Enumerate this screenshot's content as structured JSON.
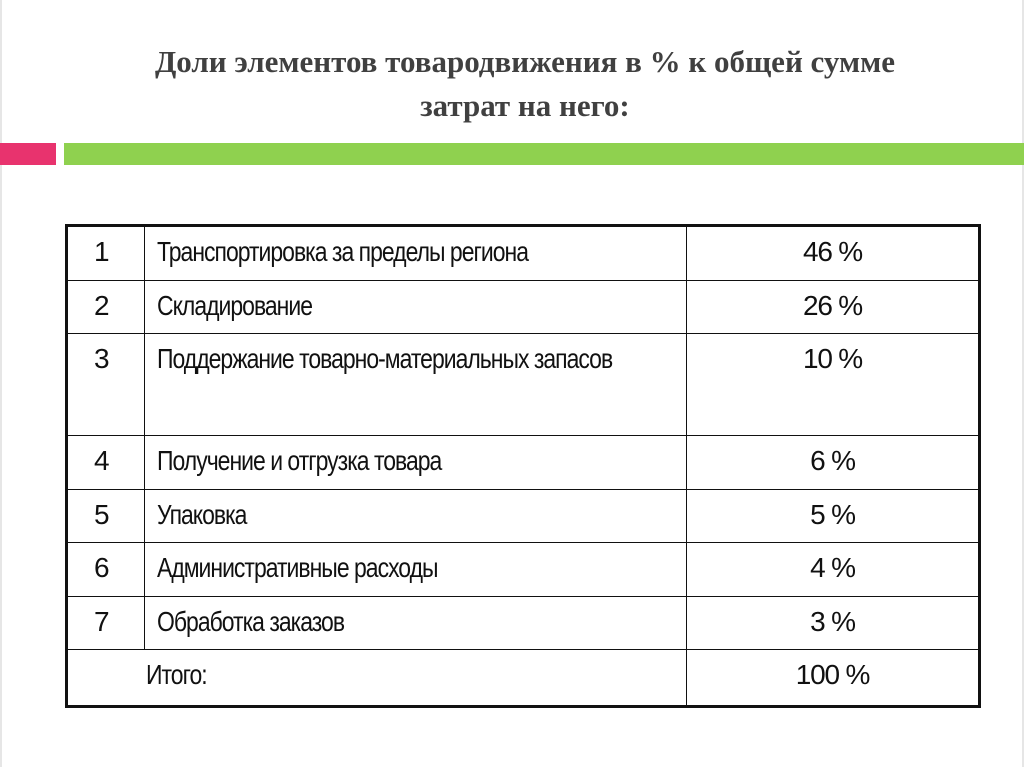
{
  "slide": {
    "title_line1": "Доли элементов товародвижения в % к общей сумме",
    "title_line2": "затрат на него:",
    "accent_pink": "#e8336e",
    "accent_green": "#8fd14f"
  },
  "table": {
    "rows": [
      {
        "num": "1",
        "name": "Транспортировка за пределы региона",
        "pct": "46 %"
      },
      {
        "num": "2",
        "name": "Складирование",
        "pct": "26 %"
      },
      {
        "num": "3",
        "name": "Поддержание товарно-материальных запасов",
        "pct": "10 %"
      },
      {
        "num": "4",
        "name": "Получение и отгрузка товара",
        "pct": "6 %"
      },
      {
        "num": "5",
        "name": "Упаковка",
        "pct": "5 %"
      },
      {
        "num": "6",
        "name": "Административные расходы",
        "pct": "4 %"
      },
      {
        "num": "7",
        "name": "Обработка заказов",
        "pct": "3 %"
      }
    ],
    "total": {
      "num": "",
      "name": "Итого:",
      "pct": "100 %"
    }
  }
}
